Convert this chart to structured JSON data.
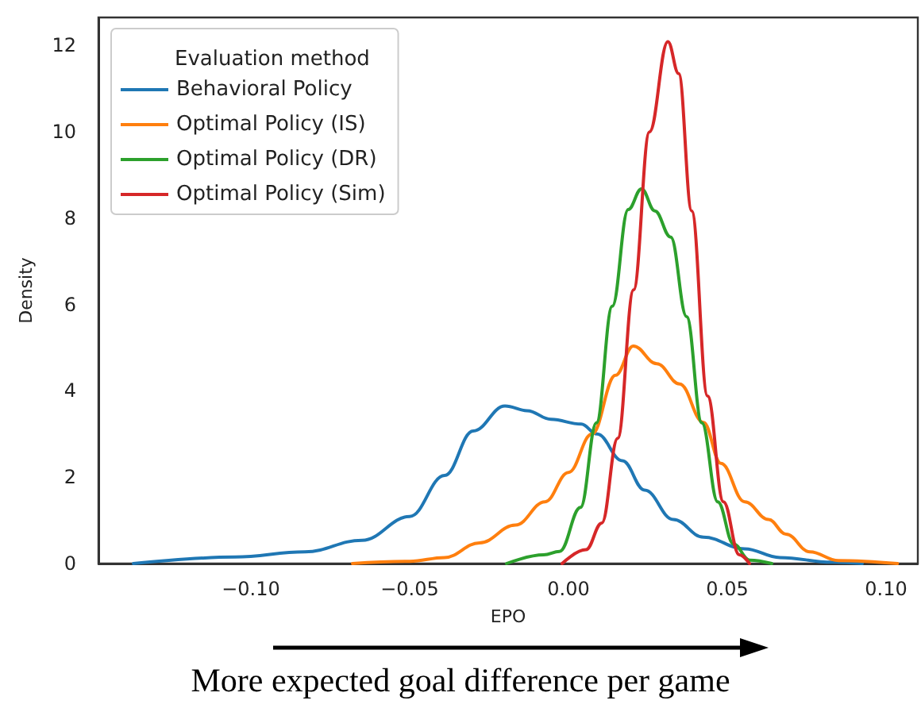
{
  "chart_data": {
    "type": "line",
    "xlabel": "EPO",
    "ylabel": "Density",
    "legend_title": "Evaluation method",
    "annotations": [
      "More expected goal difference per game"
    ],
    "xlim": [
      -0.148,
      0.11
    ],
    "ylim": [
      0,
      12.65
    ],
    "xticks": [
      {
        "value": -0.1,
        "label": "−0.10"
      },
      {
        "value": -0.05,
        "label": "−0.05"
      },
      {
        "value": 0,
        "label": "0.00"
      },
      {
        "value": 0.05,
        "label": "0.05"
      },
      {
        "value": 0.1,
        "label": "0.10"
      }
    ],
    "yticks": [
      0,
      2,
      4,
      6,
      8,
      10,
      12
    ],
    "grid": false,
    "legend": "top left",
    "series": [
      {
        "name": "Behavioral Policy",
        "color": "#1f77b4",
        "x": [
          -0.137,
          -0.105,
          -0.083,
          -0.065,
          -0.05,
          -0.039,
          -0.03,
          -0.02,
          -0.013,
          -0.0055,
          0.004,
          0.009,
          0.017,
          0.024,
          0.033,
          0.0425,
          0.0555,
          0.0666,
          0.083,
          0.0925
        ],
        "values": [
          0,
          0.15,
          0.27,
          0.54,
          1.09,
          2.04,
          3.07,
          3.65,
          3.54,
          3.34,
          3.23,
          3.0,
          2.38,
          1.7,
          1.02,
          0.61,
          0.34,
          0.14,
          0.03,
          0
        ]
      },
      {
        "name": "Optimal Policy (IS)",
        "color": "#ff7f0e",
        "x": [
          -0.068,
          -0.05,
          -0.039,
          -0.028,
          -0.0167,
          -0.0074,
          0,
          0.0074,
          0.0148,
          0.0204,
          0.0278,
          0.035,
          0.0425,
          0.048,
          0.0555,
          0.063,
          0.0685,
          0.076,
          0.085,
          0.1036
        ],
        "values": [
          0,
          0.05,
          0.14,
          0.48,
          0.89,
          1.43,
          2.11,
          3.0,
          4.36,
          5.04,
          4.63,
          4.16,
          3.27,
          2.32,
          1.43,
          1.02,
          0.68,
          0.27,
          0.07,
          0
        ]
      },
      {
        "name": "Optimal Policy (DR)",
        "color": "#2ca02c",
        "x": [
          -0.0195,
          -0.0078,
          -0.0028,
          0.0038,
          0.0088,
          0.0138,
          0.0188,
          0.023,
          0.0272,
          0.0322,
          0.0372,
          0.042,
          0.047,
          0.052,
          0.057,
          0.064
        ],
        "values": [
          0,
          0.2,
          0.28,
          1.3,
          3.26,
          5.96,
          8.2,
          8.68,
          8.17,
          7.56,
          5.72,
          3.26,
          1.43,
          0.45,
          0.08,
          0
        ]
      },
      {
        "name": "Optimal Policy (Sim)",
        "color": "#d62728",
        "x": [
          -0.002,
          0.0055,
          0.0105,
          0.0155,
          0.0205,
          0.0255,
          0.0313,
          0.0347,
          0.0388,
          0.0438,
          0.0488,
          0.0538,
          0.057
        ],
        "values": [
          0,
          0.32,
          0.94,
          2.9,
          6.34,
          10.0,
          12.09,
          11.35,
          8.17,
          3.88,
          1.43,
          0.2,
          0
        ]
      }
    ]
  }
}
